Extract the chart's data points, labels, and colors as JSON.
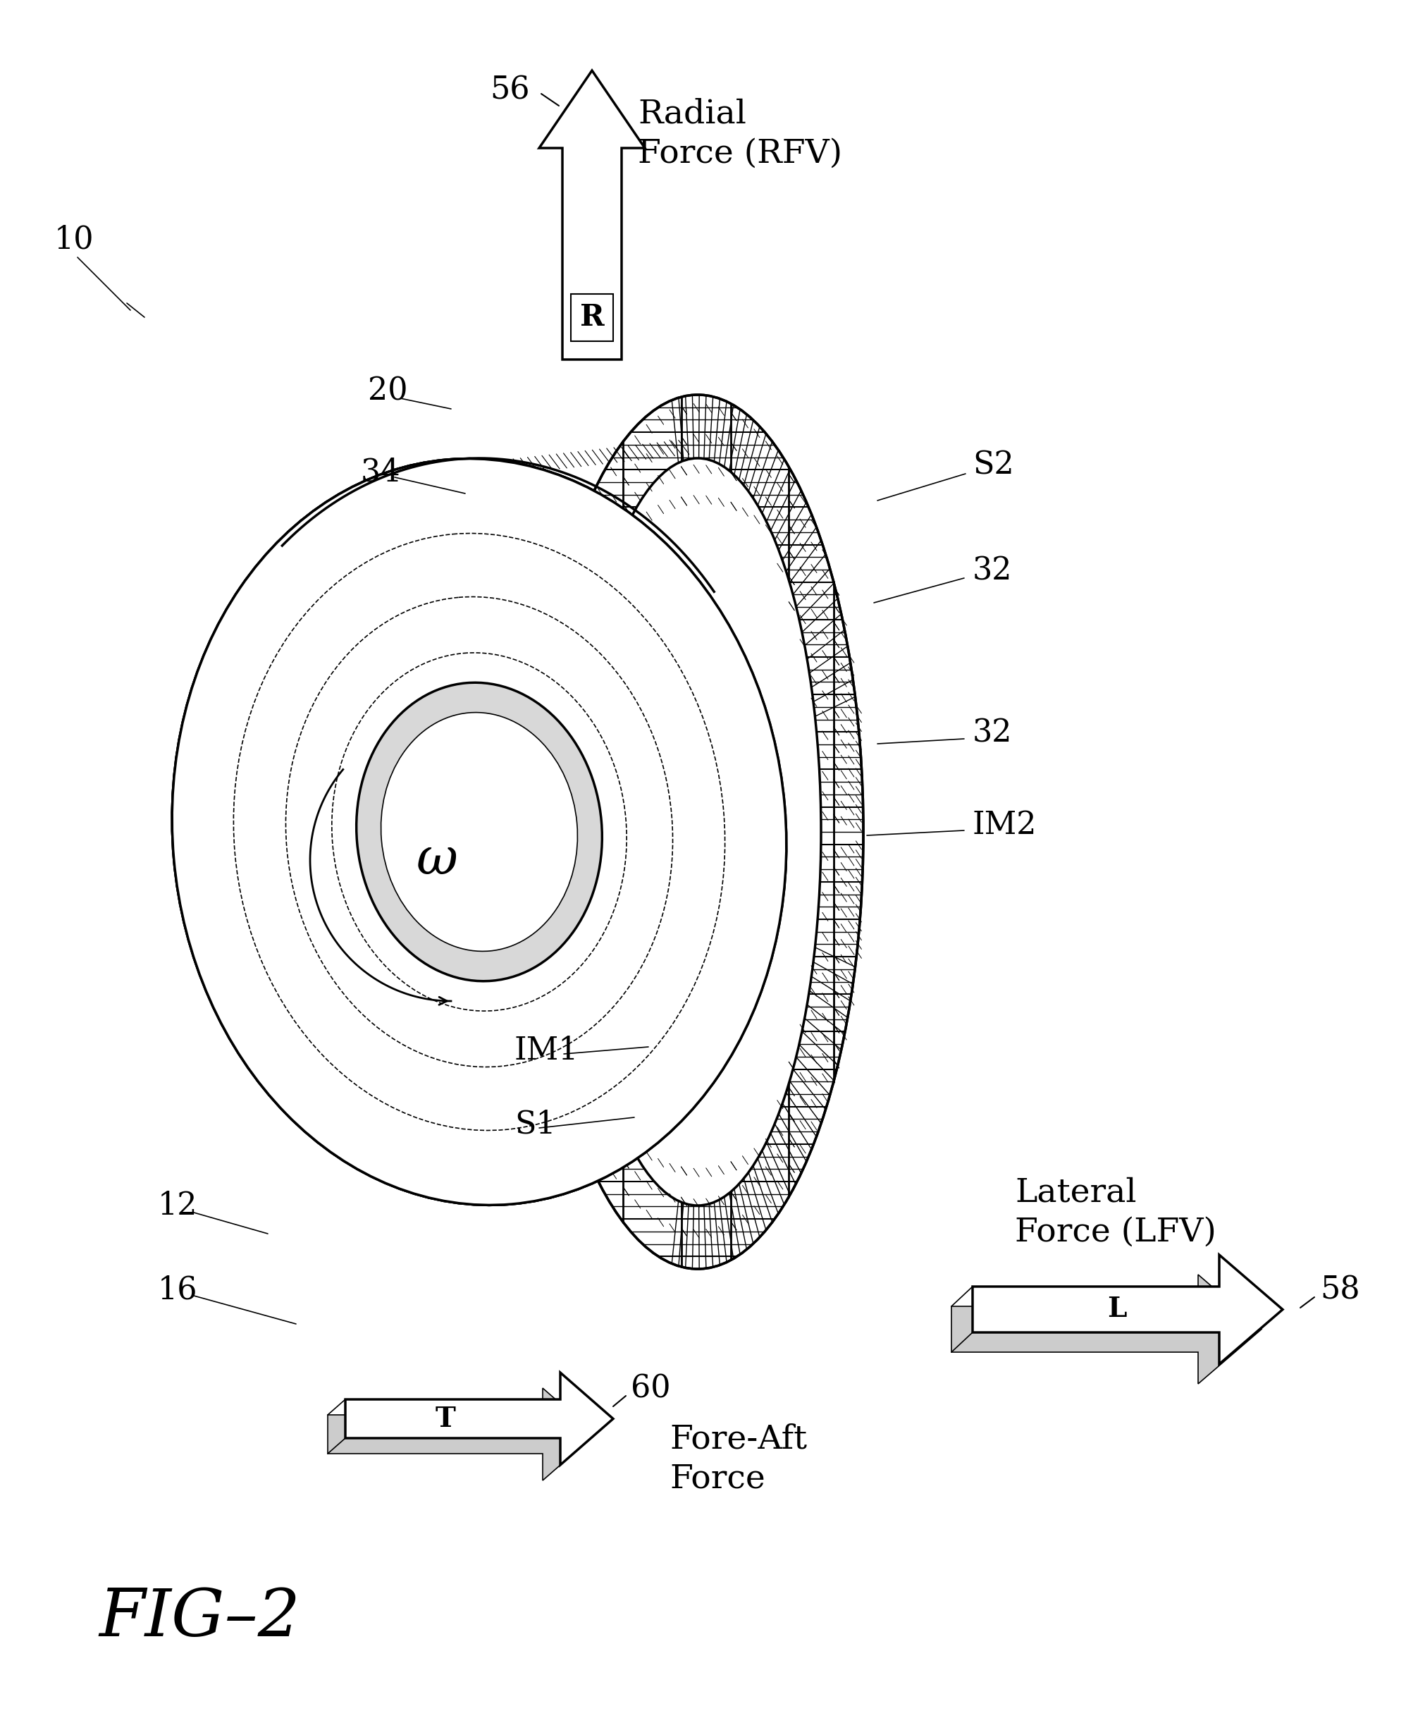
{
  "bg_color": "#ffffff",
  "line_color": "#000000",
  "labels": {
    "fig": "FIG–2",
    "label_10": "10",
    "label_12": "12",
    "label_16": "16",
    "label_20": "20",
    "label_32a": "32",
    "label_32b": "32",
    "label_34": "34",
    "label_56": "56",
    "label_58": "58",
    "label_60": "60",
    "label_S1": "S1",
    "label_S2": "S2",
    "label_IM1": "IM1",
    "label_IM2": "IM2",
    "label_omega": "ω",
    "label_R": "R",
    "label_L": "L",
    "label_T": "T",
    "radial_force": "Radial\nForce (RFV)",
    "lateral_force": "Lateral\nForce (LFV)",
    "fore_aft_force": "Fore-Aft\nForce"
  }
}
